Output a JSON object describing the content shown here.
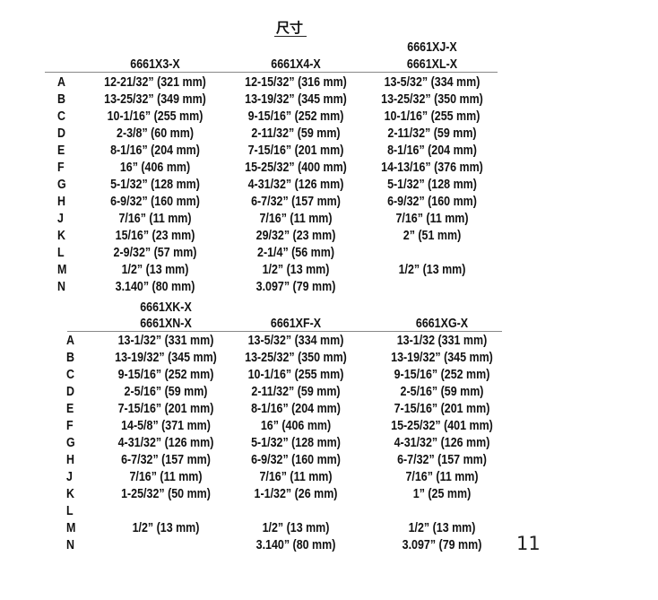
{
  "title": "尺寸",
  "page_number": "11",
  "row_labels": [
    "A",
    "B",
    "C",
    "D",
    "E",
    "F",
    "G",
    "H",
    "J",
    "K",
    "L",
    "M",
    "N"
  ],
  "tables": [
    {
      "columns": [
        {
          "header": [
            "",
            "6661X3-X"
          ],
          "values": [
            "12-21/32” (321 mm)",
            "13-25/32” (349 mm)",
            "10-1/16” (255 mm)",
            "2-3/8” (60 mm)",
            "8-1/16” (204 mm)",
            "16” (406 mm)",
            "5-1/32” (128 mm)",
            "6-9/32” (160 mm)",
            "7/16” (11 mm)",
            "15/16” (23 mm)",
            "2-9/32” (57 mm)",
            "1/2” (13 mm)",
            "3.140” (80 mm)"
          ]
        },
        {
          "header": [
            "",
            "6661X4-X"
          ],
          "values": [
            "12-15/32” (316 mm)",
            "13-19/32” (345 mm)",
            "9-15/16” (252 mm)",
            "2-11/32” (59 mm)",
            "7-15/16” (201 mm)",
            "15-25/32” (400 mm)",
            "4-31/32” (126 mm)",
            "6-7/32” (157 mm)",
            "7/16” (11 mm)",
            "29/32” (23 mm)",
            "2-1/4” (56 mm)",
            "1/2” (13 mm)",
            "3.097” (79 mm)"
          ]
        },
        {
          "header": [
            "6661XJ-X",
            "6661XL-X"
          ],
          "values": [
            "13-5/32” (334 mm)",
            "13-25/32” (350 mm)",
            "10-1/16” (255 mm)",
            "2-11/32” (59 mm)",
            "8-1/16” (204 mm)",
            "14-13/16” (376 mm)",
            "5-1/32” (128 mm)",
            "6-9/32” (160 mm)",
            "7/16” (11 mm)",
            "2” (51 mm)",
            "",
            "1/2” (13 mm)",
            ""
          ]
        }
      ]
    },
    {
      "columns": [
        {
          "header": [
            "6661XK-X",
            "6661XN-X"
          ],
          "values": [
            "13-1/32” (331 mm)",
            "13-19/32” (345 mm)",
            "9-15/16” (252 mm)",
            "2-5/16” (59 mm)",
            "7-15/16” (201 mm)",
            "14-5/8” (371 mm)",
            "4-31/32” (126 mm)",
            "6-7/32” (157 mm)",
            "7/16” (11 mm)",
            "1-25/32” (50 mm)",
            "",
            "1/2” (13 mm)",
            ""
          ]
        },
        {
          "header": [
            "",
            "6661XF-X"
          ],
          "values": [
            "13-5/32” (334 mm)",
            "13-25/32” (350 mm)",
            "10-1/16” (255 mm)",
            "2-11/32” (59 mm)",
            "8-1/16” (204 mm)",
            "16” (406 mm)",
            "5-1/32” (128 mm)",
            "6-9/32” (160 mm)",
            "7/16” (11 mm)",
            "1-1/32” (26 mm)",
            "",
            "1/2” (13 mm)",
            "3.140” (80 mm)"
          ]
        },
        {
          "header": [
            "",
            "6661XG-X"
          ],
          "values": [
            "13-1/32 (331 mm)",
            "13-19/32” (345 mm)",
            "9-15/16” (252 mm)",
            "2-5/16” (59 mm)",
            "7-15/16” (201 mm)",
            "15-25/32” (401 mm)",
            "4-31/32” (126 mm)",
            "6-7/32” (157 mm)",
            "7/16” (11 mm)",
            "1” (25 mm)",
            "",
            "1/2” (13 mm)",
            "3.097” (79 mm)"
          ]
        }
      ]
    }
  ]
}
